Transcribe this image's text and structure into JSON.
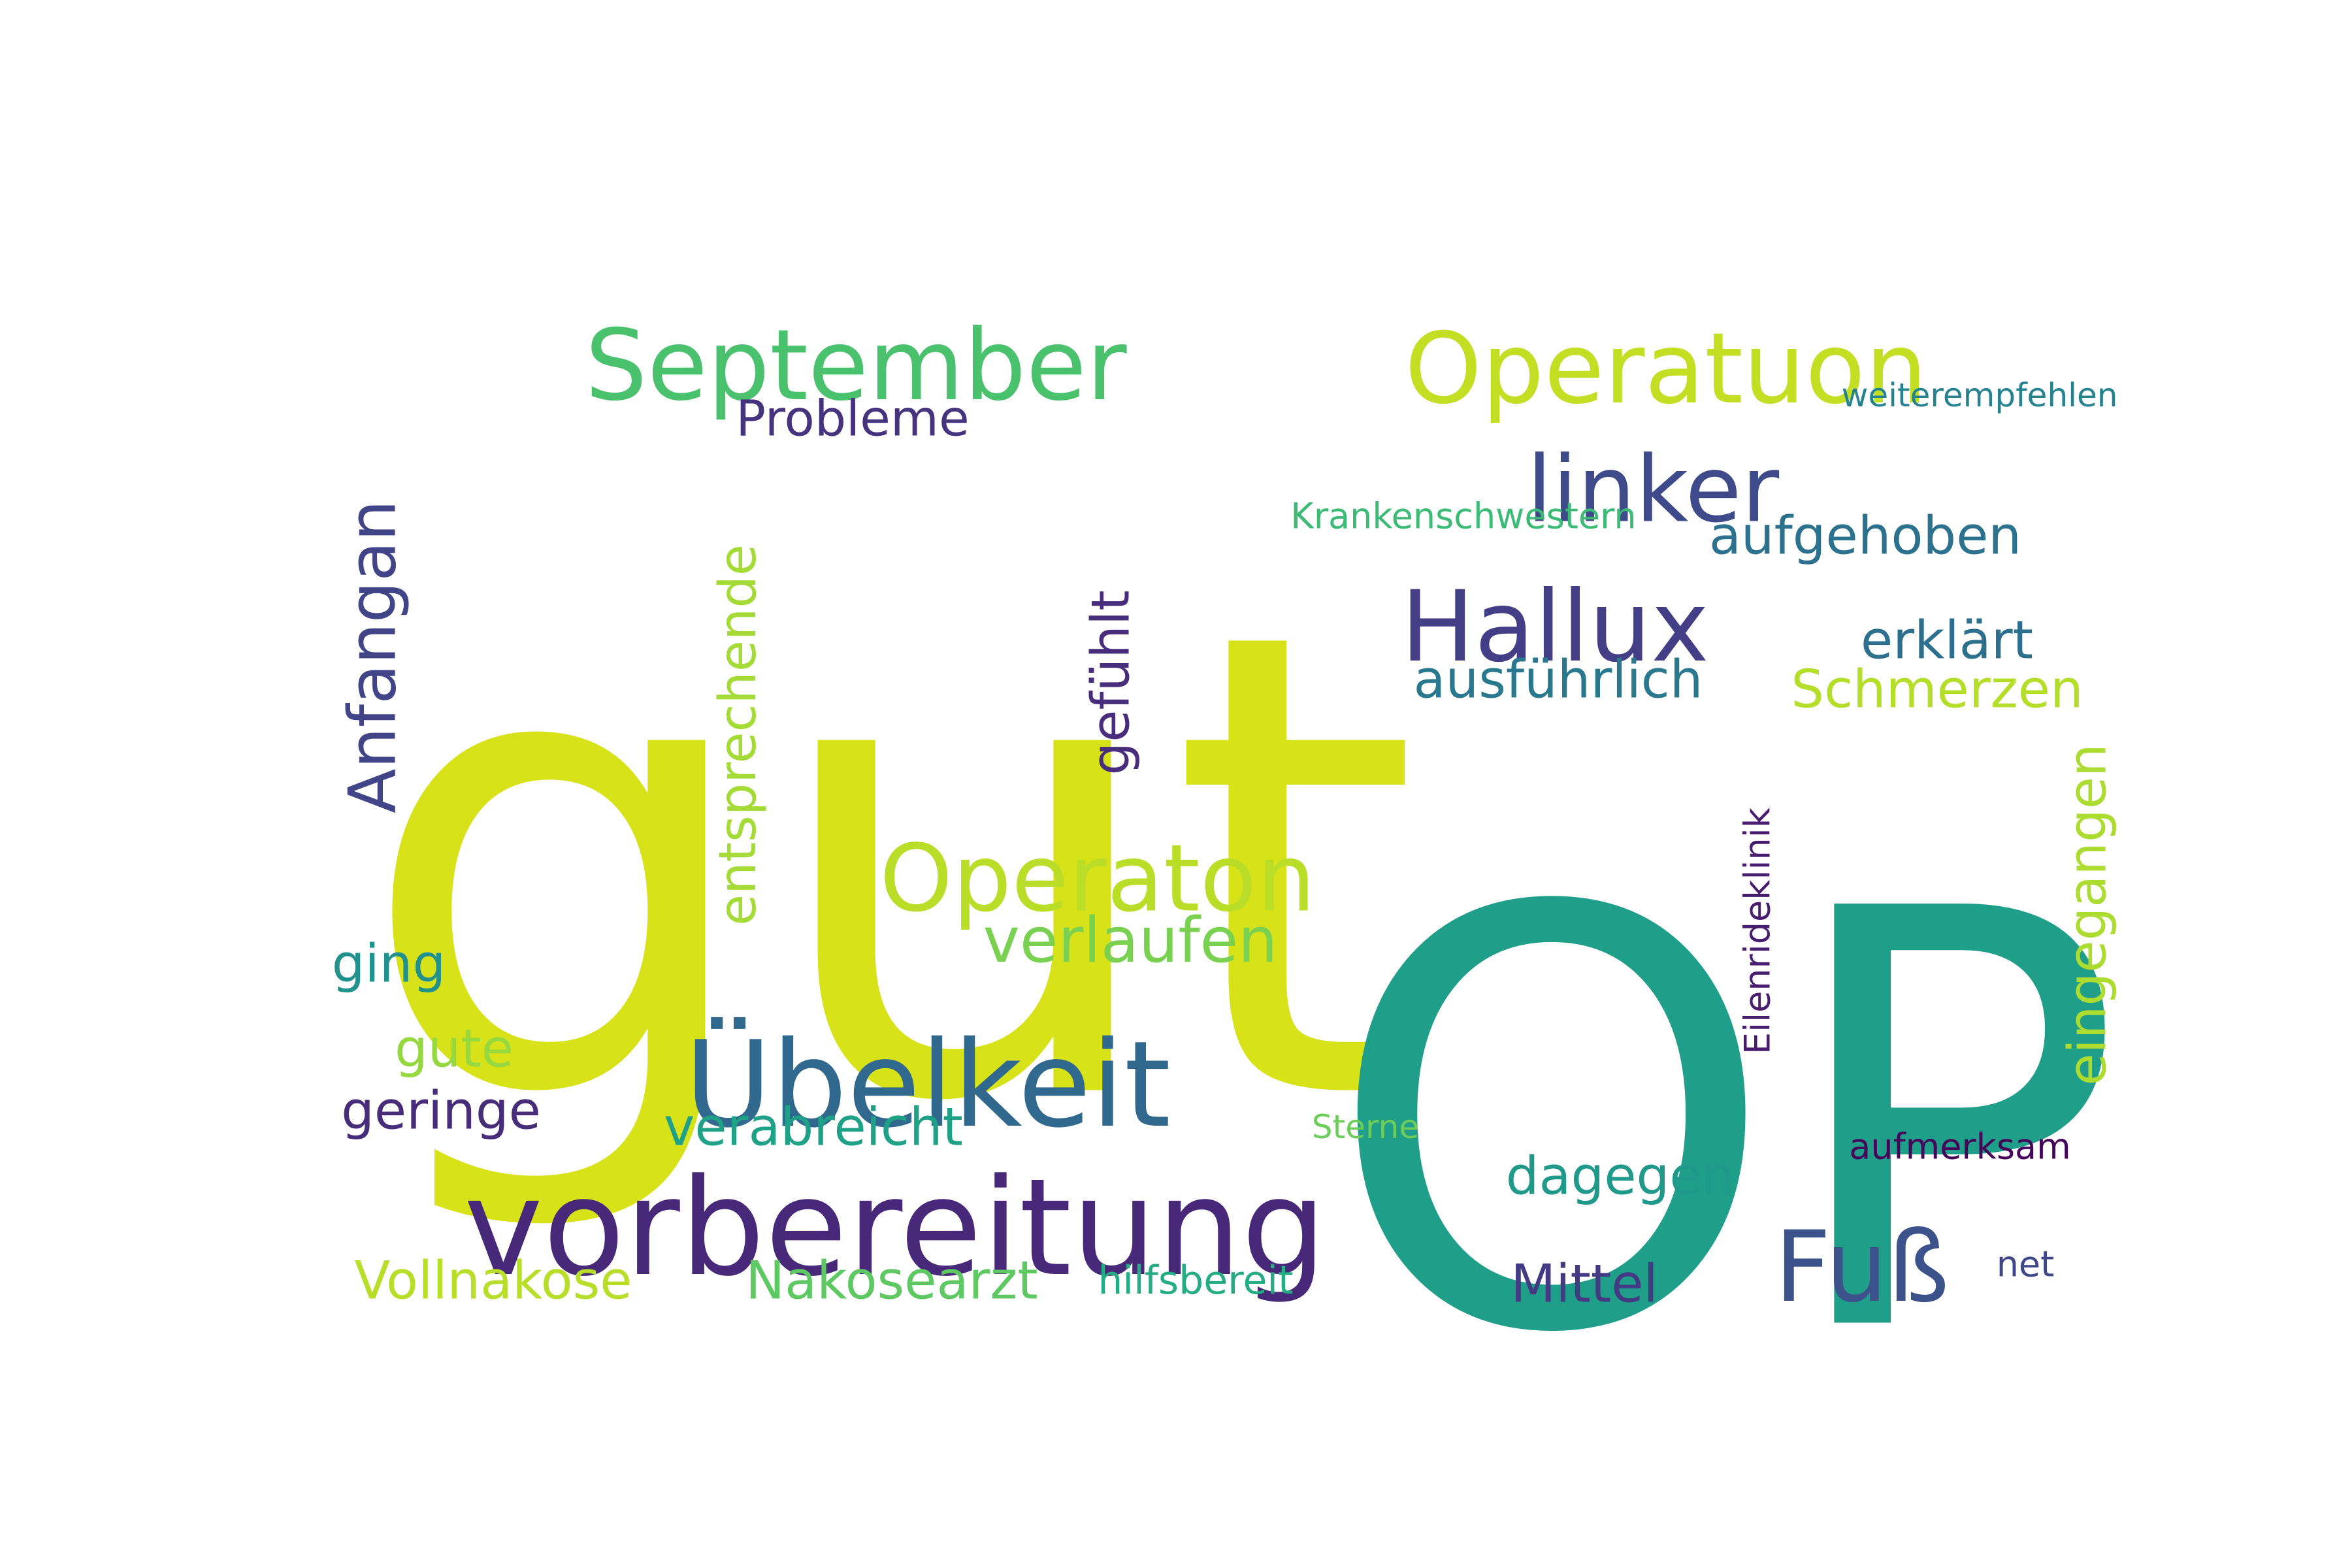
{
  "words": [
    {
      "text": "gut",
      "color": "#d8e219",
      "vertical": false
    },
    {
      "text": "OP",
      "color": "#1f9e89",
      "vertical": false
    },
    {
      "text": "vorbereitung",
      "color": "#482878",
      "vertical": false
    },
    {
      "text": "Übelkeit",
      "color": "#31688e",
      "vertical": false
    },
    {
      "text": "September",
      "color": "#4ac16d",
      "vertical": false
    },
    {
      "text": "Operatuon",
      "color": "#c2df23",
      "vertical": false
    },
    {
      "text": "Operaton",
      "color": "#bade28",
      "vertical": false
    },
    {
      "text": "Hallux",
      "color": "#433e85",
      "vertical": false
    },
    {
      "text": "linker",
      "color": "#3e4a89",
      "vertical": false
    },
    {
      "text": "Fuß",
      "color": "#3b528b",
      "vertical": false
    },
    {
      "text": "Anfangan",
      "color": "#414487",
      "vertical": true
    },
    {
      "text": "verlaufen",
      "color": "#7ad151",
      "vertical": false
    },
    {
      "text": "Probleme",
      "color": "#46337e",
      "vertical": false
    },
    {
      "text": "aufgehoben",
      "color": "#2c728e",
      "vertical": false
    },
    {
      "text": "entsprechende",
      "color": "#a5db36",
      "vertical": true
    },
    {
      "text": "ausführlich",
      "color": "#2a788e",
      "vertical": false
    },
    {
      "text": "erklärt",
      "color": "#2d708e",
      "vertical": false
    },
    {
      "text": "Schmerzen",
      "color": "#b5de2b",
      "vertical": false
    },
    {
      "text": "gefühlt",
      "color": "#472d7b",
      "vertical": true
    },
    {
      "text": "eingegangen",
      "color": "#addc30",
      "vertical": true
    },
    {
      "text": "ging",
      "color": "#21918c",
      "vertical": false
    },
    {
      "text": "gute",
      "color": "#95d840",
      "vertical": false
    },
    {
      "text": "geringe",
      "color": "#472c7a",
      "vertical": false
    },
    {
      "text": "verabreicht",
      "color": "#1fa188",
      "vertical": false
    },
    {
      "text": "dagegen",
      "color": "#1f998a",
      "vertical": false
    },
    {
      "text": "Vollnakose",
      "color": "#b8de29",
      "vertical": false
    },
    {
      "text": "Nakosearzt",
      "color": "#5ec962",
      "vertical": false
    },
    {
      "text": "hilfsbereit",
      "color": "#25ac82",
      "vertical": false
    },
    {
      "text": "Mittel",
      "color": "#443983",
      "vertical": false
    },
    {
      "text": "net",
      "color": "#3f4788",
      "vertical": false
    },
    {
      "text": "aufmerksam",
      "color": "#450559",
      "vertical": false
    },
    {
      "text": "Eilenrideklinik",
      "color": "#481d6f",
      "vertical": true
    },
    {
      "text": "Krankenschwestern",
      "color": "#3bbb75",
      "vertical": false
    },
    {
      "text": "weiterempfehlen",
      "color": "#26828e",
      "vertical": false
    },
    {
      "text": "Sterne",
      "color": "#6ccd5a",
      "vertical": false
    }
  ]
}
